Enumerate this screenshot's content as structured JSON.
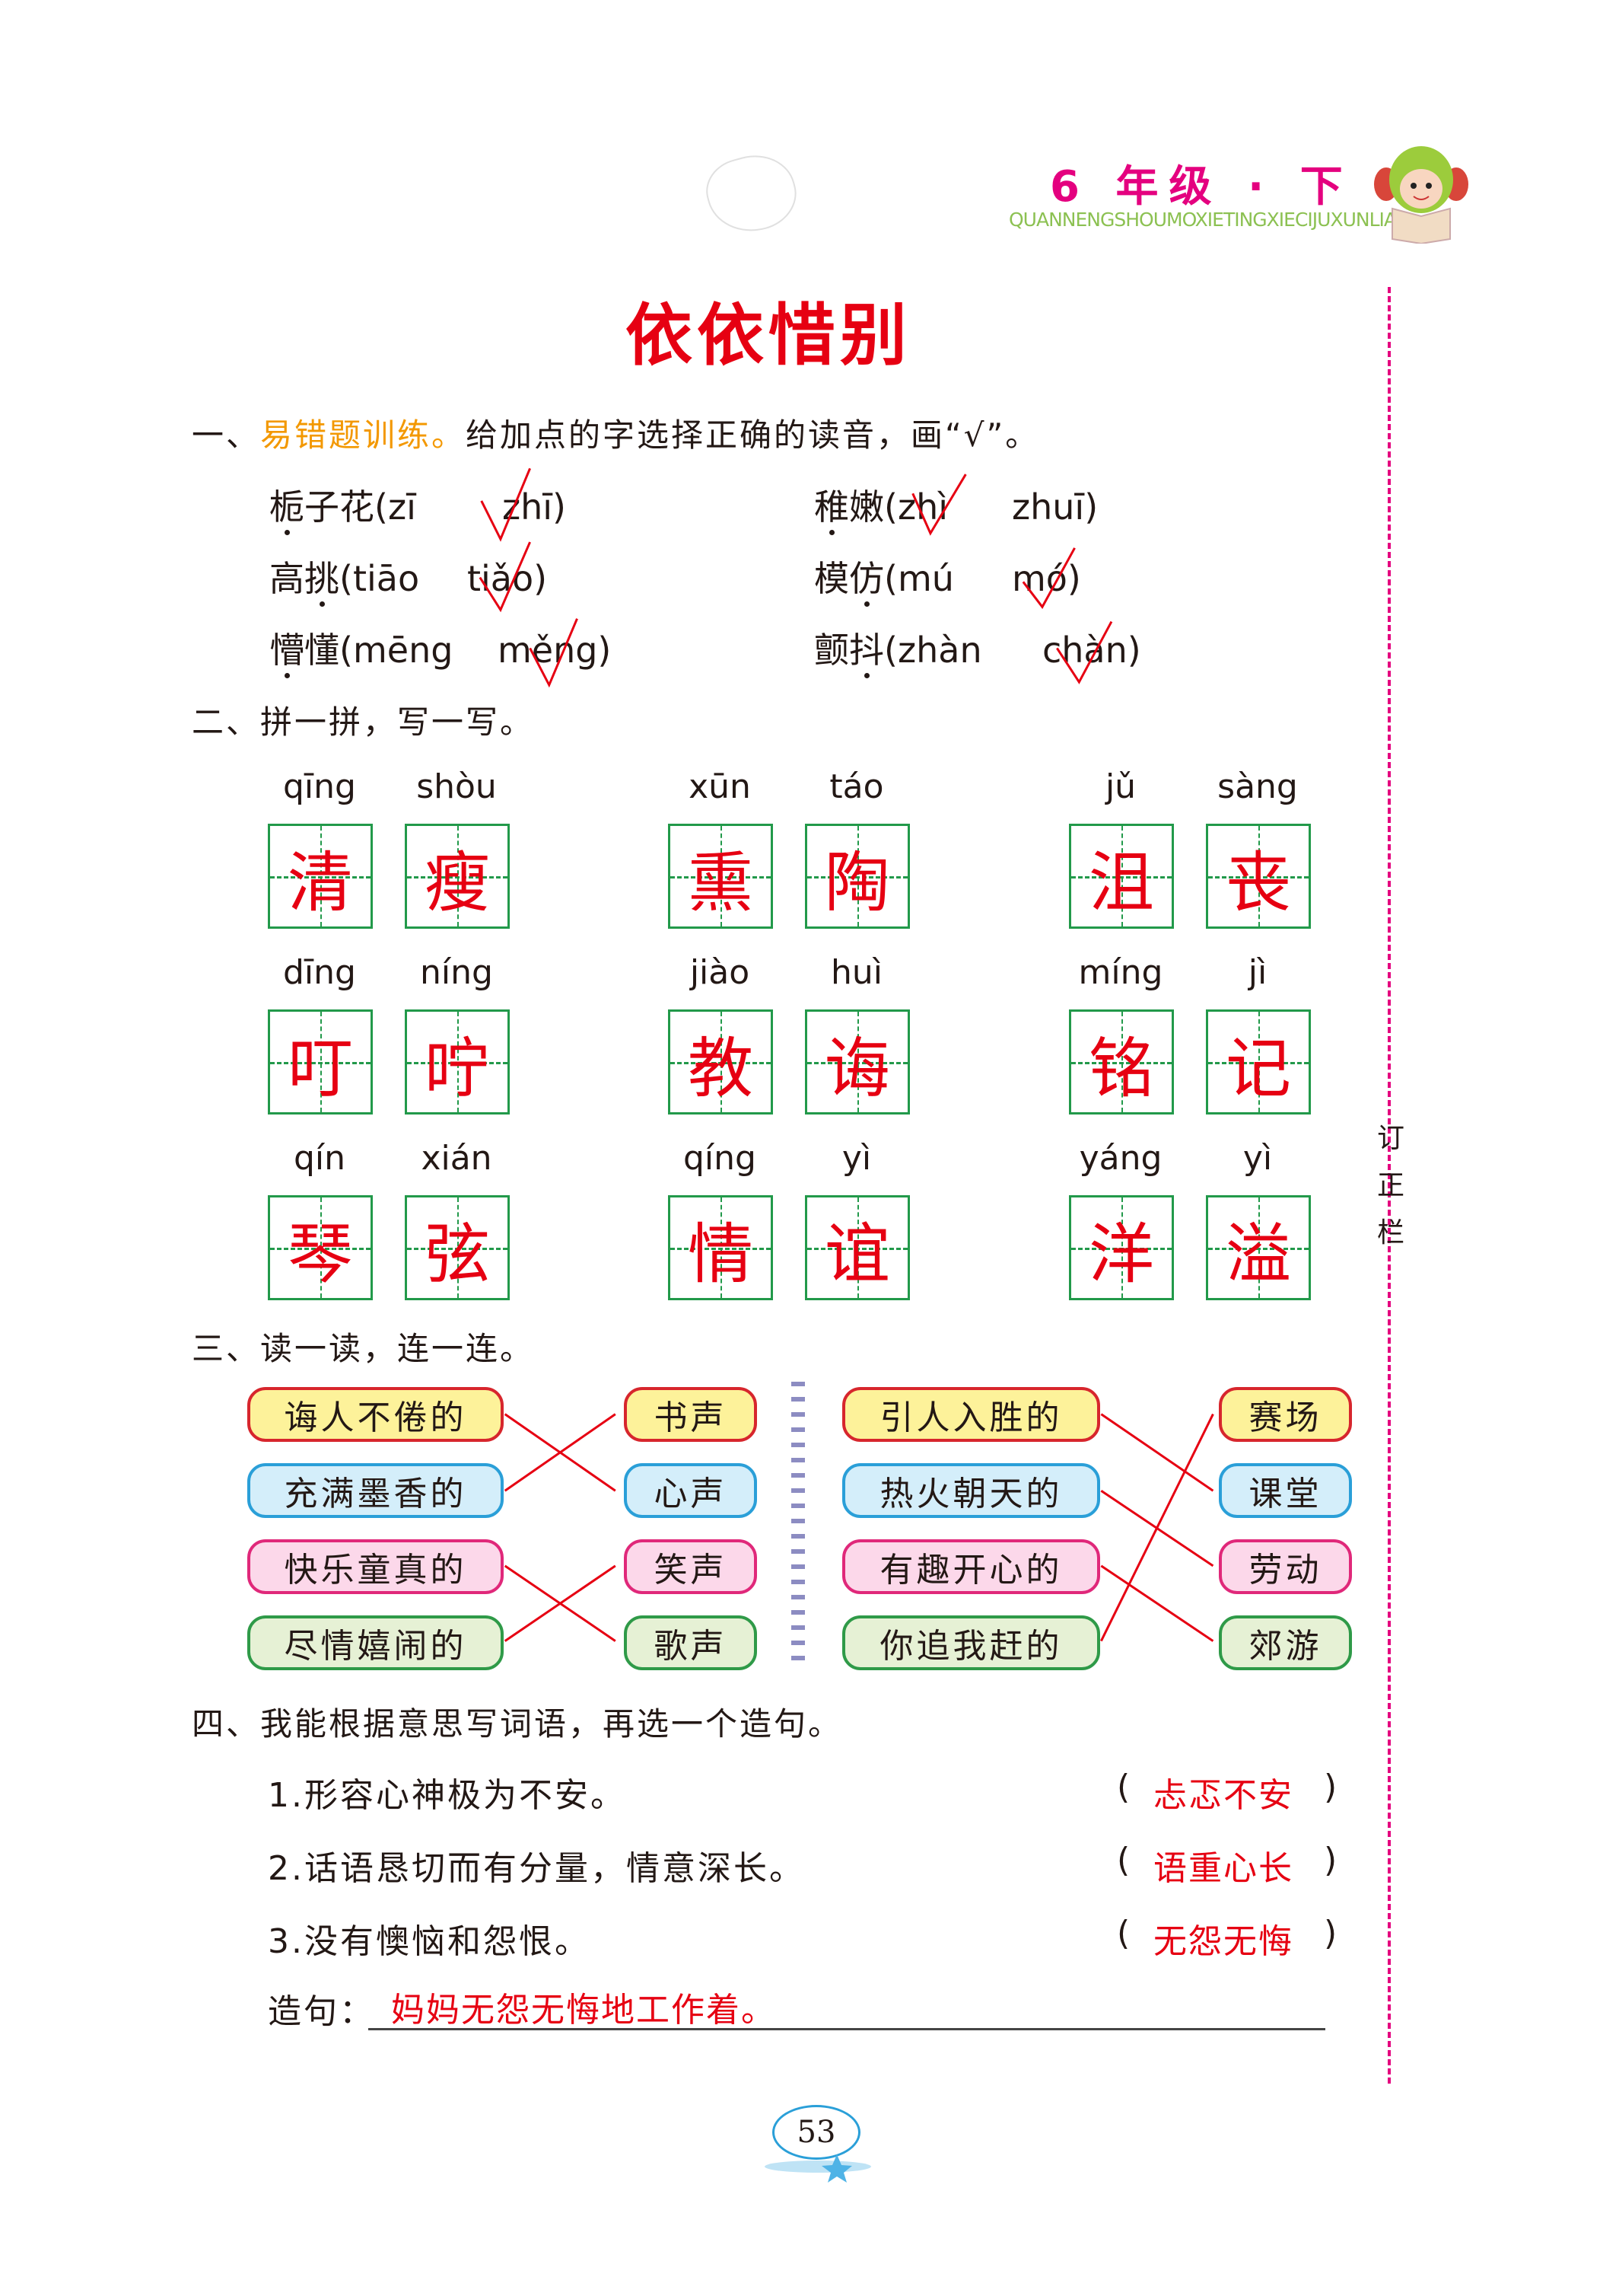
{
  "header": {
    "grade": "6 年级 · 下",
    "series_pinyin": "QUANNENGSHOUMOXIETINGXIECIJUXUNLIAN",
    "mascot_icon": "mascot-reading-icon"
  },
  "title": "依依惜别",
  "section1": {
    "heading_prefix": "一、",
    "heading_highlight": "易错题训练。",
    "heading_rest": "给加点的字选择正确的读音，画“√”。",
    "items": [
      {
        "word": "栀子花",
        "open": "(",
        "a": "zī",
        "b": "zhī",
        "close": ")",
        "answer": "b"
      },
      {
        "word": "稚嫩",
        "open": "(",
        "a": "zhì",
        "b": "zhuī",
        "close": ")",
        "answer": "a"
      },
      {
        "word": "高挑",
        "open": "(",
        "a": "tiāo",
        "b": "tiǎo",
        "close": ")",
        "answer": "b"
      },
      {
        "word": "模仿",
        "open": "(",
        "a": "mú",
        "b": "mó",
        "close": ")",
        "answer": "b"
      },
      {
        "word": "懵懂",
        "open": "(",
        "a": "mēng",
        "b": "měng",
        "close": ")",
        "answer": "b"
      },
      {
        "word": "颤抖",
        "open": "(",
        "a": "zhàn",
        "b": "chàn",
        "close": ")",
        "answer": "b"
      }
    ]
  },
  "section2": {
    "heading": "二、拼一拼，写一写。",
    "rows": [
      [
        {
          "py": "qīng",
          "ch": "清"
        },
        {
          "py": "shòu",
          "ch": "瘦"
        },
        {
          "py": "xūn",
          "ch": "熏"
        },
        {
          "py": "táo",
          "ch": "陶"
        },
        {
          "py": "jǔ",
          "ch": "沮"
        },
        {
          "py": "sàng",
          "ch": "丧"
        }
      ],
      [
        {
          "py": "dīng",
          "ch": "叮"
        },
        {
          "py": "níng",
          "ch": "咛"
        },
        {
          "py": "jiào",
          "ch": "教"
        },
        {
          "py": "huì",
          "ch": "诲"
        },
        {
          "py": "míng",
          "ch": "铭"
        },
        {
          "py": "jì",
          "ch": "记"
        }
      ],
      [
        {
          "py": "qín",
          "ch": "琴"
        },
        {
          "py": "xián",
          "ch": "弦"
        },
        {
          "py": "qíng",
          "ch": "情"
        },
        {
          "py": "yì",
          "ch": "谊"
        },
        {
          "py": "yáng",
          "ch": "洋"
        },
        {
          "py": "yì",
          "ch": "溢"
        }
      ]
    ]
  },
  "section3": {
    "heading": "三、读一读，连一连。",
    "left_group": {
      "phrases": [
        "诲人不倦的",
        "充满墨香的",
        "快乐童真的",
        "尽情嬉闹的"
      ],
      "targets": [
        "书声",
        "心声",
        "笑声",
        "歌声"
      ],
      "matches": [
        1,
        0,
        3,
        2
      ]
    },
    "right_group": {
      "phrases": [
        "引人入胜的",
        "热火朝天的",
        "有趣开心的",
        "你追我赶的"
      ],
      "targets": [
        "赛场",
        "课堂",
        "劳动",
        "郊游"
      ],
      "matches": [
        1,
        2,
        3,
        0
      ]
    },
    "row_colors": [
      "yellow",
      "blue",
      "pink",
      "green"
    ]
  },
  "section4": {
    "heading": "四、我能根据意思写词语，再选一个造句。",
    "items": [
      {
        "text": "1.形容心神极为不安。",
        "answer": "忐忑不安"
      },
      {
        "text": "2.话语恳切而有分量，情意深长。",
        "answer": "语重心长"
      },
      {
        "text": "3.没有懊恼和怨恨。",
        "answer": "无怨无悔"
      }
    ],
    "paren_open": "(",
    "paren_close": ")",
    "sentence_label": "造句：",
    "sentence": "妈妈无怨无悔地工作着。"
  },
  "sidebar": {
    "label": [
      "订",
      "正",
      "栏"
    ]
  },
  "page_number": "53",
  "colors": {
    "title_red": "#e60012",
    "answer_red": "#e60012",
    "grid_green": "#22994a",
    "grade_magenta": "#e4007f",
    "highlight_orange": "#f39800"
  }
}
